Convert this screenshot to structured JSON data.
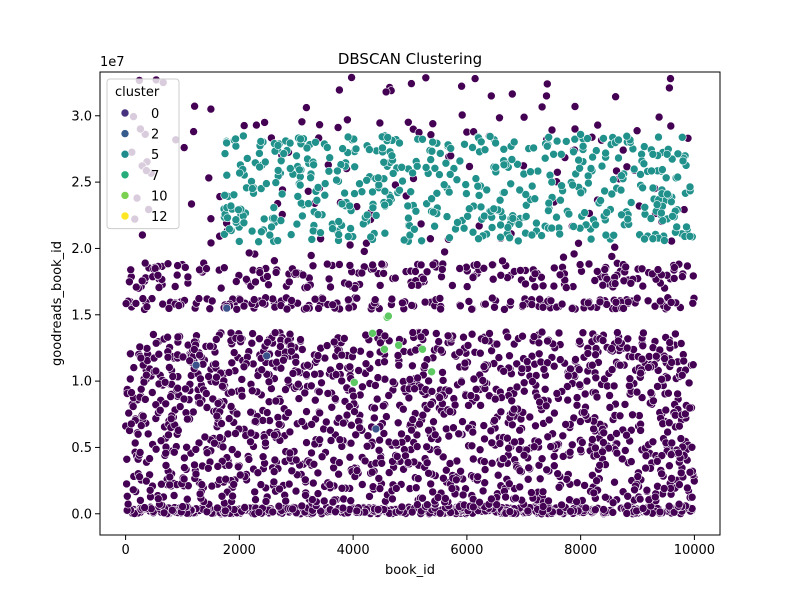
{
  "chart_data": {
    "type": "scatter",
    "title": "DBSCAN Clustering",
    "xlabel": "book_id",
    "ylabel": "goodreads_book_id",
    "y_multiplier": "1e7",
    "xlim": [
      -450,
      10450
    ],
    "ylim": [
      -1600000,
      33300000
    ],
    "x_ticks": [
      0,
      2000,
      4000,
      6000,
      8000,
      10000
    ],
    "x_tick_labels": [
      "0",
      "2000",
      "4000",
      "6000",
      "8000",
      "10000"
    ],
    "y_ticks": [
      0,
      5000000,
      10000000,
      15000000,
      20000000,
      25000000,
      30000000
    ],
    "y_tick_labels": [
      "0.0",
      "0.5",
      "1.0",
      "1.5",
      "2.0",
      "2.5",
      "3.0"
    ],
    "grid": false,
    "legend": {
      "title": "cluster",
      "placement": "top-left",
      "entries": [
        {
          "label": "0",
          "color": "#46327e"
        },
        {
          "label": "2",
          "color": "#365c8d"
        },
        {
          "label": "5",
          "color": "#1f8b8d"
        },
        {
          "label": "7",
          "color": "#26ab7a"
        },
        {
          "label": "10",
          "color": "#7ad151"
        },
        {
          "label": "12",
          "color": "#fde725"
        }
      ]
    },
    "series": [
      {
        "name": "0",
        "color": "#440154",
        "sampled": true,
        "count": 2600,
        "bands": [
          {
            "x": [
              0,
              10000
            ],
            "y": [
              0,
              500000
            ],
            "weight": 0.22
          },
          {
            "x": [
              0,
              10000
            ],
            "y": [
              500000,
              13700000
            ],
            "weight": 0.58
          },
          {
            "x": [
              0,
              10000
            ],
            "y": [
              15400000,
              16300000
            ],
            "weight": 0.07
          },
          {
            "x": [
              0,
              10000
            ],
            "y": [
              17000000,
              18900000
            ],
            "weight": 0.08
          },
          {
            "x": [
              0,
              10000
            ],
            "y": [
              19000000,
              32900000
            ],
            "weight": 0.05
          }
        ],
        "points": [
          [
            1500,
            30500000
          ],
          [
            4580,
            31800000
          ],
          [
            6430,
            31500000
          ],
          [
            7400,
            31500000
          ],
          [
            9580,
            32800000
          ],
          [
            9560,
            32100000
          ],
          [
            260,
            29000000
          ],
          [
            1030,
            27600000
          ],
          [
            2300,
            29300000
          ],
          [
            3900,
            29700000
          ],
          [
            5400,
            29400000
          ],
          [
            8300,
            29300000
          ],
          [
            9380,
            29900000
          ],
          [
            7900,
            29000000
          ]
        ]
      },
      {
        "name": "2",
        "color": "#3b528b",
        "sampled": true,
        "count": 4,
        "points": [
          [
            1780,
            15500000
          ],
          [
            1240,
            11200000
          ],
          [
            2480,
            11900000
          ],
          [
            4400,
            6400000
          ]
        ]
      },
      {
        "name": "5",
        "color": "#21918c",
        "sampled": true,
        "count": 520,
        "bands": [
          {
            "x": [
              1700,
              10000
            ],
            "y": [
              20500000,
              28500000
            ],
            "weight": 1.0
          }
        ],
        "points": [
          [
            8000,
            28600000
          ],
          [
            9270,
            27100000
          ],
          [
            9520,
            27100000
          ]
        ]
      },
      {
        "name": "7",
        "color": "#5ec962",
        "sampled": false,
        "points": [
          [
            4020,
            9900000
          ],
          [
            4340,
            13600000
          ],
          [
            4600,
            14800000
          ],
          [
            4620,
            14900000
          ],
          [
            4800,
            12700000
          ],
          [
            5220,
            12400000
          ],
          [
            5380,
            10700000
          ],
          [
            4550,
            12400000
          ]
        ]
      }
    ]
  }
}
